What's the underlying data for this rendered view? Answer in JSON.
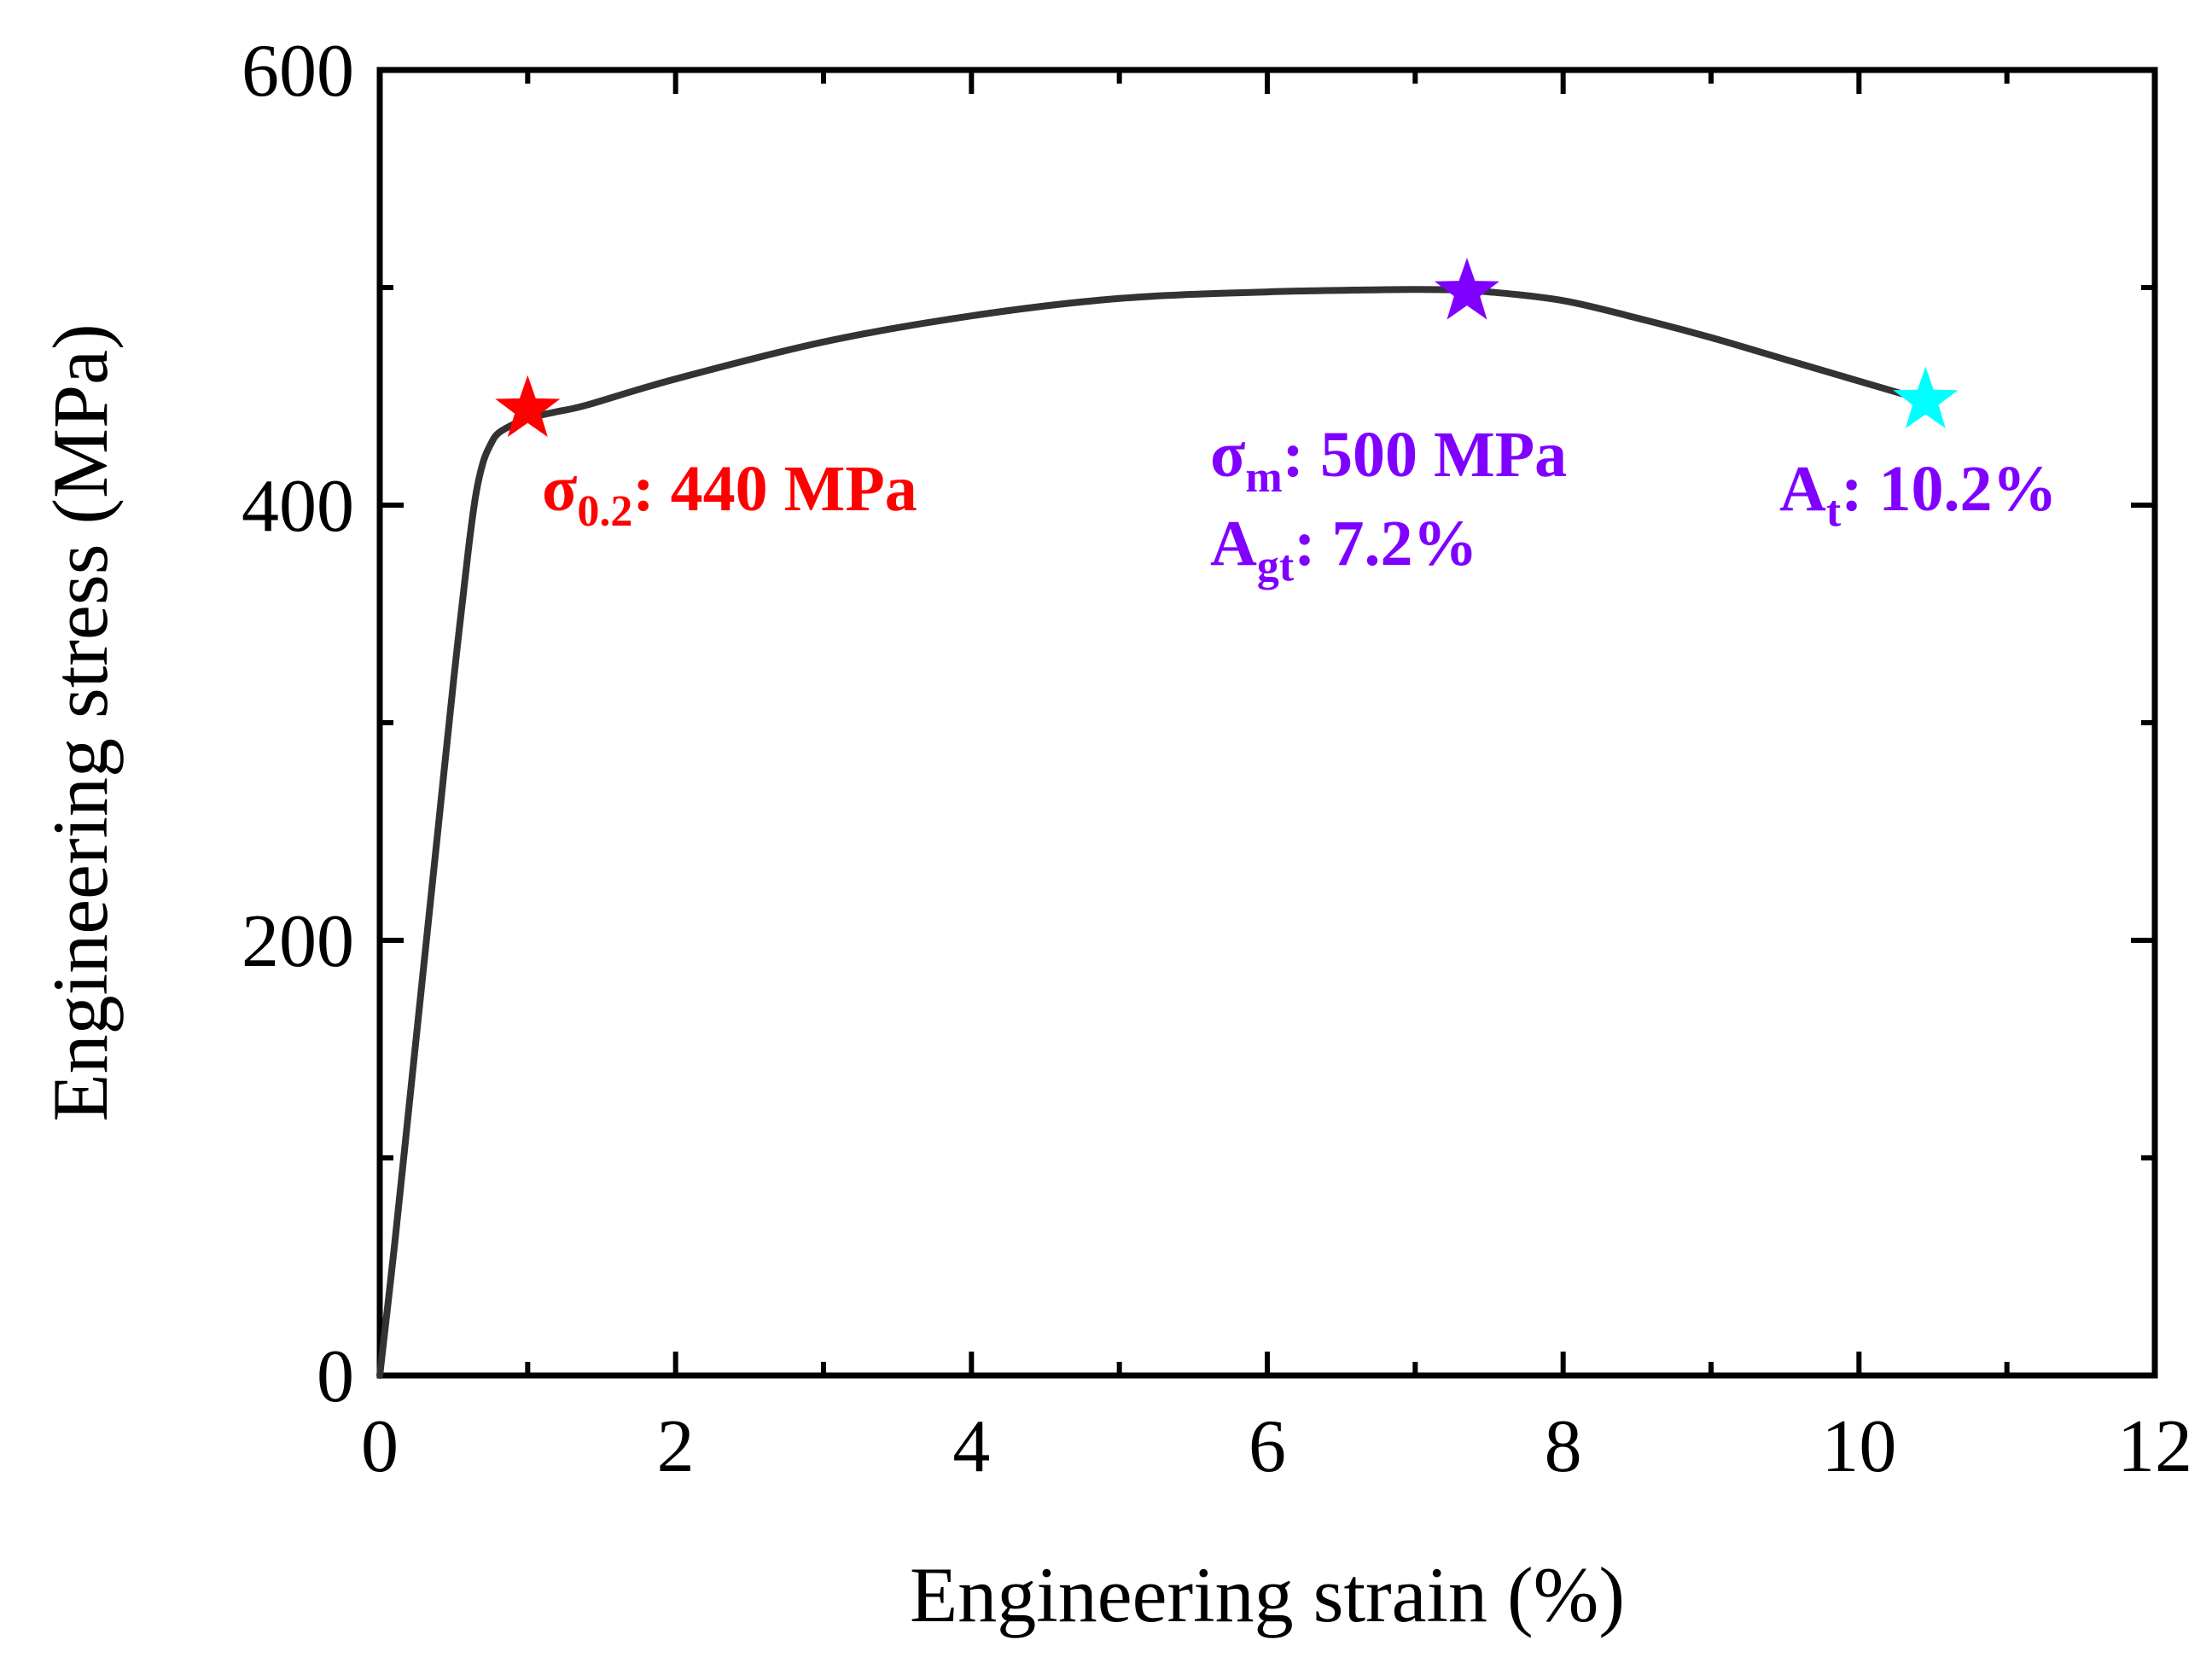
{
  "chart_data": {
    "type": "line",
    "title": "",
    "xlabel": "Engineering strain (%)",
    "ylabel": "Engineering stress (MPa)",
    "xlim": [
      0,
      12
    ],
    "ylim": [
      0,
      600
    ],
    "x_ticks": [
      0,
      2,
      4,
      6,
      8,
      10,
      12
    ],
    "y_ticks": [
      0,
      200,
      400,
      600
    ],
    "x_tick_labels": [
      "0",
      "2",
      "4",
      "6",
      "8",
      "10",
      "12"
    ],
    "y_tick_labels": [
      "0",
      "200",
      "400",
      "600"
    ],
    "grid": false,
    "legend": "none",
    "series": [
      {
        "color": "#333333",
        "x": [
          0,
          0.1,
          0.2,
          0.3,
          0.4,
          0.5,
          0.6,
          0.65,
          0.7,
          0.75,
          0.8,
          0.9,
          1.0,
          1.2,
          1.4,
          2.0,
          3.0,
          4.0,
          5.0,
          6.0,
          6.8,
          7.2,
          7.5,
          8.0,
          8.5,
          9.0,
          9.5,
          10.0,
          10.45
        ],
        "y": [
          0,
          60,
          125,
          190,
          255,
          320,
          380,
          405,
          420,
          428,
          433,
          437,
          440,
          443,
          446,
          458,
          475,
          487,
          495,
          498,
          499,
          499,
          498,
          494,
          486,
          477,
          467,
          457,
          448
        ]
      }
    ],
    "markers": [
      {
        "name": "yield",
        "x": 1.0,
        "y": 444,
        "color": "#ff0000",
        "shape": "star"
      },
      {
        "name": "max",
        "x": 7.35,
        "y": 498,
        "color": "#8000ff",
        "shape": "star"
      },
      {
        "name": "fracture",
        "x": 10.45,
        "y": 448,
        "color": "#00ffff",
        "shape": "star"
      }
    ],
    "annotations": [
      {
        "color": "#ff0000",
        "lines": [
          {
            "sym": "σ",
            "sub": "0.2",
            "text": ": 440 MPa"
          }
        ]
      },
      {
        "color": "#8000ff",
        "lines": [
          {
            "sym": "σ",
            "sub": "m",
            "text": ": 500 MPa"
          },
          {
            "sym": "A",
            "sub": "gt",
            "text": ": 7.2%"
          }
        ]
      },
      {
        "color": "#8000ff",
        "lines": [
          {
            "sym": "A",
            "sub": "t",
            "text": ": 10.2%"
          }
        ]
      }
    ]
  }
}
